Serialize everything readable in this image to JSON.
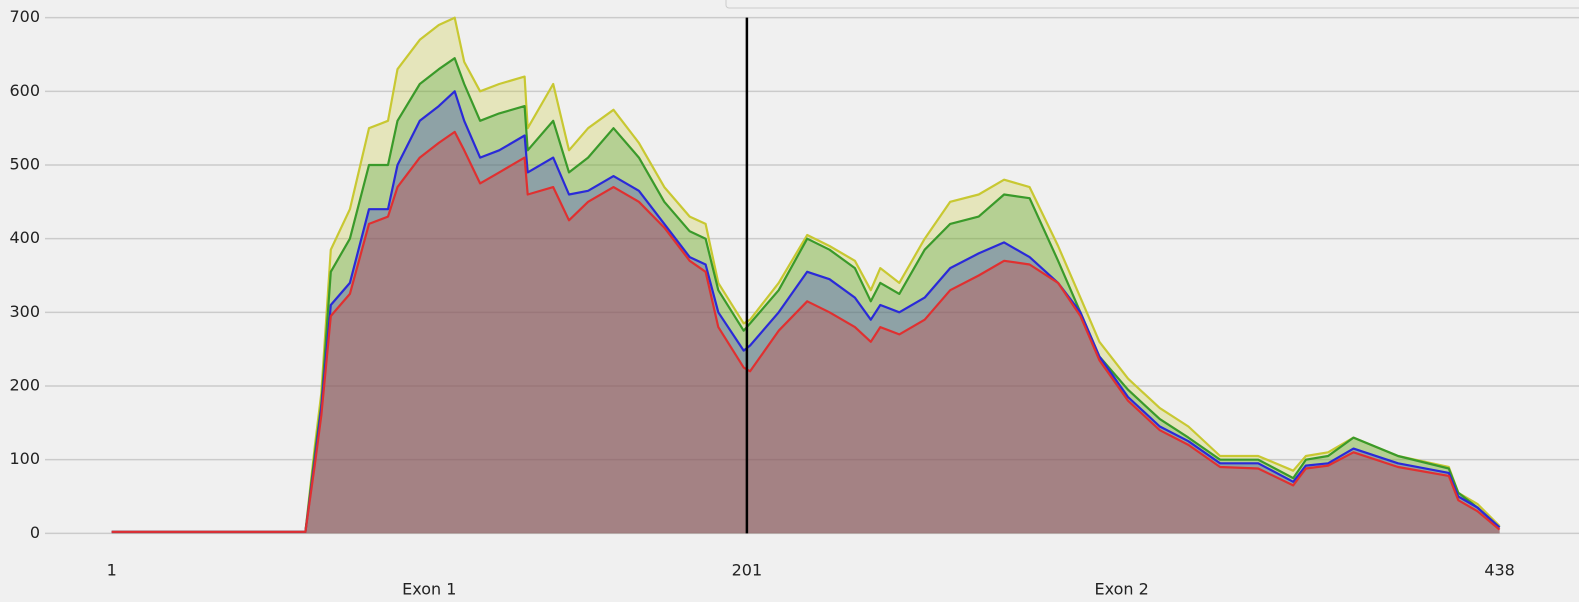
{
  "chart_data": {
    "type": "area",
    "x": [
      1,
      30,
      62,
      65,
      67,
      70,
      76,
      82,
      88,
      91,
      98,
      104,
      109,
      112,
      117,
      123,
      131,
      132,
      140,
      145,
      151,
      159,
      167,
      175,
      183,
      188,
      192,
      200,
      202,
      211,
      220,
      227,
      235,
      240,
      243,
      249,
      257,
      265,
      274,
      282,
      290,
      299,
      306,
      312,
      321,
      331,
      340,
      350,
      362,
      373,
      377,
      384,
      392,
      406,
      422,
      425,
      431,
      438
    ],
    "series": [
      {
        "color": "#c8c832",
        "values": [
          2,
          2,
          2,
          120,
          190,
          385,
          440,
          550,
          560,
          630,
          670,
          690,
          700,
          640,
          600,
          610,
          620,
          550,
          610,
          520,
          550,
          575,
          530,
          470,
          430,
          420,
          340,
          285,
          290,
          340,
          405,
          390,
          370,
          330,
          360,
          340,
          400,
          450,
          460,
          480,
          470,
          390,
          320,
          260,
          210,
          170,
          145,
          105,
          105,
          85,
          105,
          110,
          130,
          105,
          90,
          55,
          40,
          10
        ]
      },
      {
        "color": "#3a9a2a",
        "values": [
          2,
          2,
          2,
          110,
          175,
          355,
          400,
          500,
          500,
          560,
          610,
          630,
          645,
          610,
          560,
          570,
          580,
          520,
          560,
          490,
          510,
          550,
          510,
          450,
          410,
          400,
          330,
          275,
          285,
          330,
          400,
          385,
          360,
          315,
          340,
          325,
          385,
          420,
          430,
          460,
          455,
          370,
          300,
          240,
          195,
          155,
          130,
          100,
          100,
          75,
          100,
          105,
          130,
          105,
          88,
          55,
          35,
          8
        ]
      },
      {
        "color": "#2a2ad8",
        "values": [
          2,
          2,
          2,
          100,
          170,
          310,
          340,
          440,
          440,
          500,
          560,
          580,
          600,
          560,
          510,
          520,
          540,
          490,
          510,
          460,
          465,
          485,
          465,
          420,
          375,
          365,
          300,
          248,
          255,
          300,
          355,
          345,
          320,
          290,
          310,
          300,
          320,
          360,
          380,
          395,
          375,
          340,
          300,
          240,
          185,
          145,
          125,
          95,
          95,
          70,
          92,
          95,
          115,
          95,
          82,
          50,
          35,
          8
        ]
      },
      {
        "color": "#e03030",
        "values": [
          2,
          2,
          2,
          95,
          160,
          295,
          325,
          420,
          430,
          470,
          510,
          530,
          545,
          520,
          475,
          490,
          510,
          460,
          470,
          425,
          450,
          470,
          450,
          415,
          370,
          355,
          280,
          225,
          220,
          275,
          315,
          300,
          280,
          260,
          280,
          270,
          290,
          330,
          350,
          370,
          365,
          340,
          295,
          235,
          180,
          140,
          120,
          90,
          88,
          65,
          88,
          92,
          110,
          90,
          78,
          45,
          30,
          5
        ]
      }
    ],
    "xlim": [
      -20,
      463
    ],
    "ylim": [
      -24,
      724
    ],
    "xticks": [
      1,
      201,
      438
    ],
    "yticks": [
      0,
      100,
      200,
      300,
      400,
      500,
      600,
      700
    ],
    "grid": true,
    "vline": 201,
    "annotations": [
      {
        "text": "Exon 1",
        "x": 101
      },
      {
        "text": "Exon 2",
        "x": 319
      }
    ]
  }
}
